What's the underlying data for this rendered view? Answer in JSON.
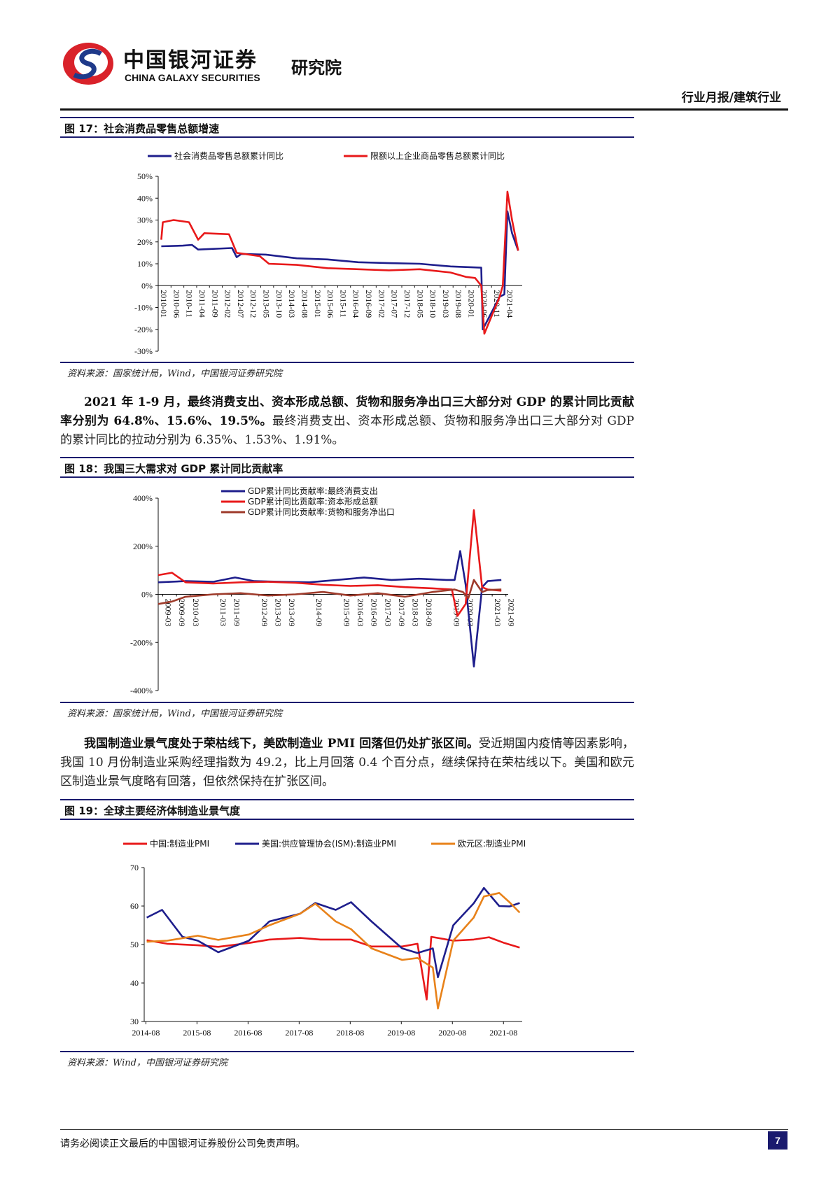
{
  "header": {
    "brand_cn": "中国银河证券",
    "brand_en": "CHINA GALAXY SECURITIES",
    "institute": "研究院",
    "report_type": "行业月报/建筑行业"
  },
  "figure17": {
    "title": "图 17：社会消费品零售总额增速",
    "source": "资料来源：国家统计局，Wind，中国银河证券研究院",
    "chart_data": {
      "type": "line",
      "x": [
        "2010-01",
        "2010-06",
        "2010-11",
        "2011-04",
        "2011-09",
        "2012-02",
        "2012-07",
        "2012-12",
        "2013-05",
        "2013-10",
        "2014-03",
        "2014-08",
        "2015-01",
        "2015-06",
        "2015-11",
        "2016-04",
        "2016-09",
        "2017-02",
        "2017-07",
        "2017-12",
        "2018-05",
        "2018-10",
        "2019-03",
        "2019-08",
        "2020-01",
        "2020-06",
        "2020-11",
        "2021-04"
      ],
      "series": [
        {
          "name": "社会消费品零售总额累计同比",
          "color": "#1e1e8c",
          "points": [
            [
              2010.1,
              18
            ],
            [
              2010.8,
              18.3
            ],
            [
              2011.1,
              18.6
            ],
            [
              2011.3,
              16.5
            ],
            [
              2012.4,
              17.2
            ],
            [
              2012.55,
              13
            ],
            [
              2012.7,
              14.5
            ],
            [
              2013.5,
              14.2
            ],
            [
              2014.5,
              12.5
            ],
            [
              2015.5,
              12
            ],
            [
              2016.5,
              10.7
            ],
            [
              2017.5,
              10.3
            ],
            [
              2018.5,
              10
            ],
            [
              2019.5,
              8.8
            ],
            [
              2020.5,
              8.2
            ],
            [
              2020.55,
              -20
            ],
            [
              2021.1,
              -5
            ],
            [
              2021.25,
              -4
            ],
            [
              2021.35,
              34
            ],
            [
              2021.5,
              24
            ],
            [
              2021.7,
              16
            ]
          ]
        },
        {
          "name": "限额以上企业商品零售总额累计同比",
          "color": "#e8191a",
          "points": [
            [
              2010.1,
              21
            ],
            [
              2010.15,
              29
            ],
            [
              2010.5,
              30
            ],
            [
              2011.0,
              29
            ],
            [
              2011.3,
              21
            ],
            [
              2011.5,
              24
            ],
            [
              2012.3,
              23.5
            ],
            [
              2012.55,
              15
            ],
            [
              2012.8,
              14.5
            ],
            [
              2013.3,
              13.5
            ],
            [
              2013.6,
              10
            ],
            [
              2014.5,
              9.5
            ],
            [
              2015.5,
              8
            ],
            [
              2016.5,
              7.5
            ],
            [
              2017.5,
              7
            ],
            [
              2018.5,
              7.5
            ],
            [
              2019.5,
              6
            ],
            [
              2020.0,
              4
            ],
            [
              2020.3,
              3.5
            ],
            [
              2020.5,
              0
            ],
            [
              2020.6,
              -22
            ],
            [
              2021.1,
              -5
            ],
            [
              2021.2,
              0
            ],
            [
              2021.35,
              43
            ],
            [
              2021.5,
              30
            ],
            [
              2021.7,
              16
            ]
          ]
        }
      ],
      "ylim": [
        -30,
        50
      ],
      "yticks": [
        "50%",
        "40%",
        "30%",
        "20%",
        "10%",
        "0%",
        "-10%",
        "-20%",
        "-30%"
      ]
    }
  },
  "para1": {
    "bold": "2021 年 1-9 月，最终消费支出、资本形成总额、货物和服务净出口三大部分对 GDP 的累计同比贡献率分别为 64.8%、15.6%、19.5%。",
    "text": "最终消费支出、资本形成总额、货物和服务净出口三大部分对 GDP 的累计同比的拉动分别为 6.35%、1.53%、1.91%。"
  },
  "figure18": {
    "title": "图 18：我国三大需求对 GDP 累计同比贡献率",
    "source": "资料来源：国家统计局，Wind，中国银河证券研究院",
    "chart_data": {
      "type": "line",
      "x": [
        "2009-03",
        "2009-09",
        "2010-03",
        "2011-03",
        "2011-09",
        "2012-09",
        "2013-03",
        "2013-09",
        "2014-09",
        "2015-09",
        "2016-03",
        "2016-09",
        "2017-03",
        "2017-09",
        "2018-03",
        "2018-09",
        "2019-09",
        "2020-03",
        "2021-03",
        "2021-09"
      ],
      "series": [
        {
          "name": "GDP累计同比贡献率:最终消费支出",
          "color": "#1e1e8c",
          "points": [
            [
              2009.0,
              50
            ],
            [
              2010,
              55
            ],
            [
              2011,
              52
            ],
            [
              2011.8,
              70
            ],
            [
              2012.5,
              55
            ],
            [
              2013.5,
              52
            ],
            [
              2014.5,
              50
            ],
            [
              2015.5,
              60
            ],
            [
              2016.5,
              70
            ],
            [
              2017.5,
              60
            ],
            [
              2018.5,
              65
            ],
            [
              2019.5,
              60
            ],
            [
              2019.8,
              60
            ],
            [
              2020.0,
              180
            ],
            [
              2020.2,
              40
            ],
            [
              2020.5,
              -300
            ],
            [
              2020.8,
              30
            ],
            [
              2021.0,
              55
            ],
            [
              2021.5,
              60
            ]
          ]
        },
        {
          "name": "GDP累计同比贡献率:资本形成总额",
          "color": "#e8191a",
          "points": [
            [
              2009.0,
              80
            ],
            [
              2009.5,
              90
            ],
            [
              2010,
              50
            ],
            [
              2011,
              45
            ],
            [
              2012,
              50
            ],
            [
              2013,
              52
            ],
            [
              2014,
              48
            ],
            [
              2015,
              40
            ],
            [
              2016,
              35
            ],
            [
              2017,
              38
            ],
            [
              2018,
              30
            ],
            [
              2019,
              25
            ],
            [
              2019.7,
              20
            ],
            [
              2019.9,
              -90
            ],
            [
              2020.2,
              -40
            ],
            [
              2020.5,
              350
            ],
            [
              2020.8,
              30
            ],
            [
              2021.0,
              20
            ],
            [
              2021.5,
              15
            ]
          ]
        },
        {
          "name": "GDP累计同比贡献率:货物和服务净出口",
          "color": "#9e3a2a",
          "points": [
            [
              2009.0,
              -40
            ],
            [
              2009.5,
              -30
            ],
            [
              2010,
              -10
            ],
            [
              2011,
              0
            ],
            [
              2012,
              5
            ],
            [
              2013,
              -5
            ],
            [
              2014,
              0
            ],
            [
              2015,
              10
            ],
            [
              2016,
              -5
            ],
            [
              2017,
              5
            ],
            [
              2018,
              -10
            ],
            [
              2019,
              10
            ],
            [
              2019.8,
              20
            ],
            [
              2020.1,
              10
            ],
            [
              2020.3,
              -15
            ],
            [
              2020.5,
              60
            ],
            [
              2020.8,
              10
            ],
            [
              2021.0,
              18
            ],
            [
              2021.5,
              20
            ]
          ]
        }
      ],
      "ylim": [
        -400,
        400
      ],
      "yticks": [
        "400%",
        "200%",
        "0%",
        "-200%",
        "-400%"
      ]
    }
  },
  "para2": {
    "bold": "我国制造业景气度处于荣枯线下，美欧制造业 PMI 回落但仍处扩张区间。",
    "text": "受近期国内疫情等因素影响，我国 10 月份制造业采购经理指数为 49.2，比上月回落 0.4 个百分点，继续保持在荣枯线以下。美国和欧元区制造业景气度略有回落，但依然保持在扩张区间。"
  },
  "figure19": {
    "title": "图 19：全球主要经济体制造业景气度",
    "source": "资料来源：Wind，中国银河证券研究院",
    "chart_data": {
      "type": "line",
      "xticks": [
        "2014-08",
        "2015-08",
        "2016-08",
        "2017-08",
        "2018-08",
        "2019-08",
        "2020-08",
        "2021-08"
      ],
      "series": [
        {
          "name": "中国:制造业PMI",
          "color": "#e8191a",
          "points": [
            [
              2014.6,
              51.1
            ],
            [
              2015.0,
              50.2
            ],
            [
              2015.6,
              49.8
            ],
            [
              2016.0,
              49.4
            ],
            [
              2016.6,
              50.4
            ],
            [
              2017.0,
              51.3
            ],
            [
              2017.6,
              51.7
            ],
            [
              2018.0,
              51.3
            ],
            [
              2018.6,
              51.3
            ],
            [
              2019.0,
              49.5
            ],
            [
              2019.6,
              49.5
            ],
            [
              2019.9,
              50.2
            ],
            [
              2020.08,
              35.7
            ],
            [
              2020.17,
              52
            ],
            [
              2020.6,
              51
            ],
            [
              2021.0,
              51.3
            ],
            [
              2021.3,
              51.9
            ],
            [
              2021.6,
              50.4
            ],
            [
              2021.9,
              49.2
            ]
          ]
        },
        {
          "name": "美国:供应管理协会(ISM):制造业PMI",
          "color": "#1e1e8c",
          "points": [
            [
              2014.6,
              57
            ],
            [
              2014.9,
              59
            ],
            [
              2015.3,
              52
            ],
            [
              2015.6,
              51
            ],
            [
              2016.0,
              48
            ],
            [
              2016.6,
              51
            ],
            [
              2017.0,
              56
            ],
            [
              2017.6,
              58
            ],
            [
              2017.9,
              60.8
            ],
            [
              2018.3,
              59
            ],
            [
              2018.6,
              61
            ],
            [
              2019.0,
              56
            ],
            [
              2019.6,
              49
            ],
            [
              2019.9,
              47.8
            ],
            [
              2020.2,
              49
            ],
            [
              2020.3,
              41.5
            ],
            [
              2020.6,
              55
            ],
            [
              2021.0,
              60.7
            ],
            [
              2021.2,
              64.7
            ],
            [
              2021.5,
              60
            ],
            [
              2021.7,
              59.9
            ],
            [
              2021.9,
              60.8
            ]
          ]
        },
        {
          "name": "欧元区:制造业PMI",
          "color": "#e8821a",
          "points": [
            [
              2014.6,
              50.7
            ],
            [
              2015.0,
              51
            ],
            [
              2015.6,
              52.3
            ],
            [
              2016.0,
              51.2
            ],
            [
              2016.6,
              52.6
            ],
            [
              2017.0,
              55
            ],
            [
              2017.6,
              58
            ],
            [
              2017.9,
              60.6
            ],
            [
              2018.3,
              56
            ],
            [
              2018.6,
              54
            ],
            [
              2019.0,
              49
            ],
            [
              2019.6,
              46
            ],
            [
              2019.9,
              46.5
            ],
            [
              2020.2,
              44
            ],
            [
              2020.3,
              33.4
            ],
            [
              2020.6,
              51
            ],
            [
              2021.0,
              57
            ],
            [
              2021.2,
              62.5
            ],
            [
              2021.5,
              63.4
            ],
            [
              2021.7,
              61
            ],
            [
              2021.9,
              58.3
            ]
          ]
        }
      ],
      "ylim": [
        30,
        70
      ],
      "yticks": [
        "70",
        "60",
        "50",
        "40",
        "30"
      ]
    }
  },
  "footer": {
    "disclaimer": "请务必阅读正文最后的中国银河证券股份公司免责声明。",
    "page": "7"
  }
}
